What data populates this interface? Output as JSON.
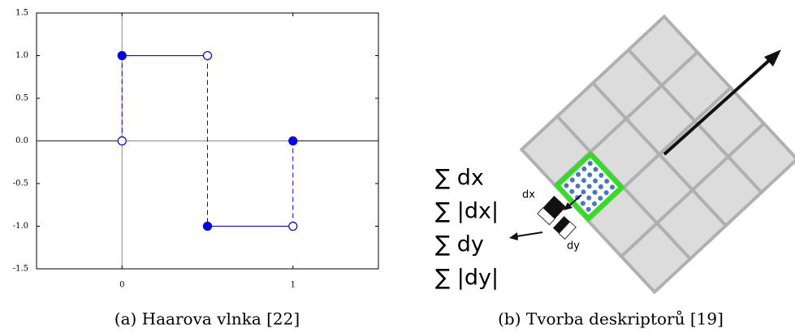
{
  "chart_data": {
    "type": "line",
    "color": "#0000ee",
    "x": [
      -0.5,
      0,
      0,
      0,
      0.5,
      0.5,
      0.5,
      1,
      1,
      1,
      1.5
    ],
    "values": [
      0,
      0,
      null,
      1,
      1,
      null,
      -1,
      -1,
      null,
      0,
      0
    ],
    "closed_points": {
      "x": [
        0,
        0.5,
        1
      ],
      "values": [
        1,
        -1,
        0
      ]
    },
    "open_points": {
      "x": [
        0,
        0.5,
        1
      ],
      "values": [
        0,
        1,
        -1
      ]
    },
    "xlim": [
      -0.5,
      1.5
    ],
    "ylim": [
      -1.5,
      1.5
    ],
    "xticks": [
      0,
      1
    ],
    "yticks": [
      1.5,
      {
        "value": 1,
        "label": "1.0"
      },
      0.5,
      {
        "value": 0,
        "label": "0.0"
      },
      -0.5,
      {
        "value": -1,
        "label": "-1.0"
      },
      -1.5
    ]
  },
  "captions": [
    "(a) Haarova vlnka [22]",
    "(b) Tvorba deskriptorů [19]"
  ],
  "diagram": {
    "sums": [
      "∑ dx",
      "∑ |dx|",
      "∑ dy",
      "∑ |dy|"
    ],
    "dx": "dx",
    "dy": "dy"
  }
}
